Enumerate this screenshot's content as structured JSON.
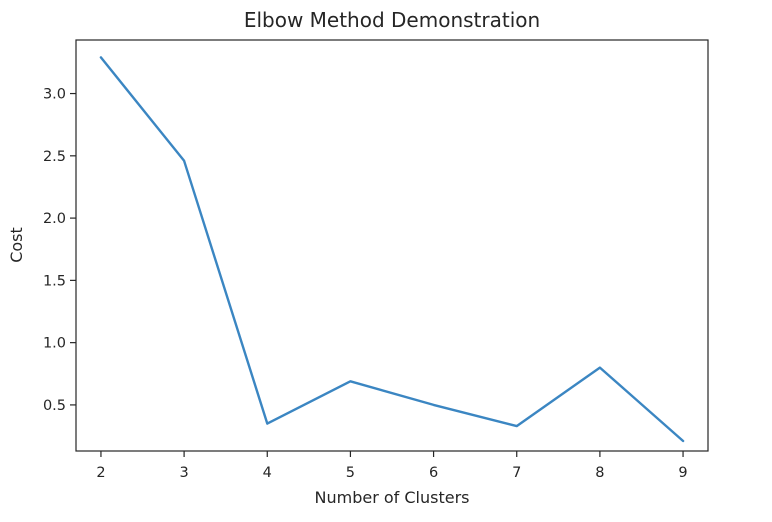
{
  "chart_data": {
    "type": "line",
    "title": "Elbow Method Demonstration",
    "xlabel": "Number of Clusters",
    "ylabel": "Cost",
    "xlim": [
      1.7,
      9.3
    ],
    "ylim": [
      0.13,
      3.43
    ],
    "xticks": [
      2,
      3,
      4,
      5,
      6,
      7,
      8,
      9
    ],
    "yticks": [
      0.5,
      1.0,
      1.5,
      2.0,
      2.5,
      3.0
    ],
    "ytick_labels": [
      "0.5",
      "1.0",
      "1.5",
      "2.0",
      "2.5",
      "3.0"
    ],
    "grid": false,
    "series": [
      {
        "color": "#3b86c2",
        "x": [
          2,
          3,
          4,
          5,
          6,
          7,
          8,
          9
        ],
        "y": [
          3.29,
          2.46,
          0.35,
          0.69,
          0.5,
          0.33,
          0.8,
          0.21
        ]
      }
    ]
  }
}
